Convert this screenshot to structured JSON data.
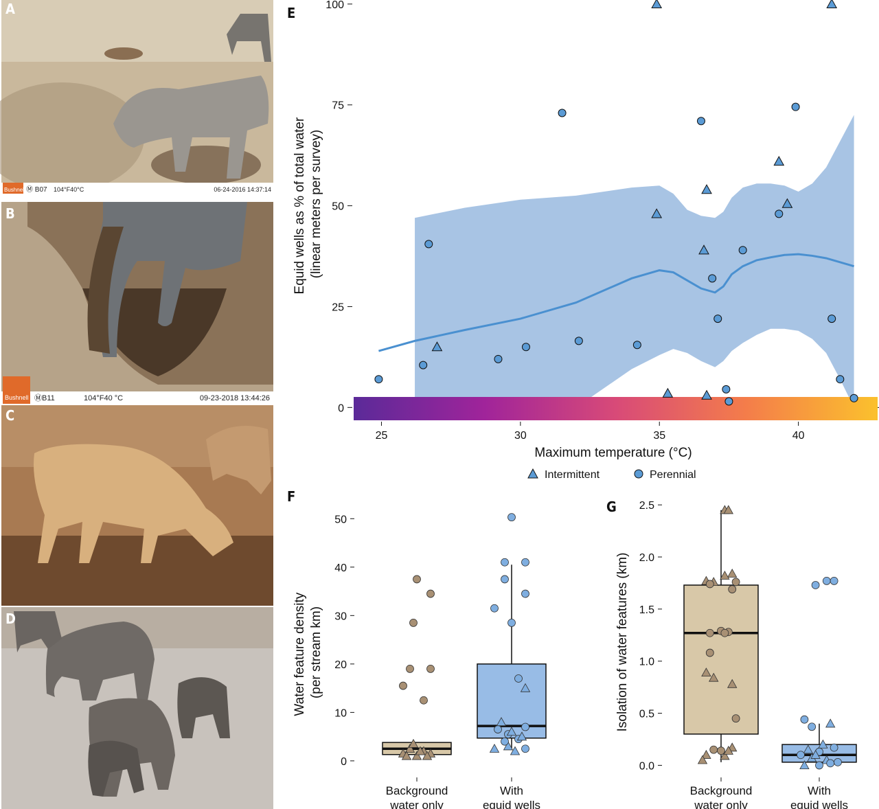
{
  "photos": [
    {
      "letter": "A",
      "camera": "B07",
      "temp": "104°F40°C",
      "datetime": "06-24-2016  14:37:14",
      "logo": "Bushnell"
    },
    {
      "letter": "B",
      "camera": "B11",
      "temp": "104°F40 °C",
      "datetime": "09-23-2018  13:44:26",
      "logo": "Bushnell"
    },
    {
      "letter": "C"
    },
    {
      "letter": "D"
    }
  ],
  "chart_data": [
    {
      "panel": "E",
      "type": "scatter",
      "ylabel": [
        "Equid wells as % of total water",
        "(linear meters per survey)"
      ],
      "xlabel": "Maximum temperature (°C)",
      "xlim": [
        24,
        42.9
      ],
      "ylim": [
        -2.5,
        101
      ],
      "x_ticks": [
        25,
        30,
        35,
        40
      ],
      "y_ticks": [
        0,
        25,
        50,
        75,
        100
      ],
      "legend": {
        "placement": "bottom",
        "entries": [
          {
            "name": "Intermittent",
            "shape": "triangle"
          },
          {
            "name": "Perennial",
            "shape": "circle"
          }
        ]
      },
      "colors": {
        "point": "#5b9bd5",
        "ribbon": "#a8c4e4",
        "smooth": "#4a90d0"
      },
      "colorbar": [
        "#5b2a99",
        "#a0249a",
        "#d84a78",
        "#f47d4a",
        "#fbc12d"
      ],
      "series": [
        {
          "name": "Intermittent",
          "shape": "triangle",
          "points": [
            [
              27.0,
              15
            ],
            [
              34.9,
              100
            ],
            [
              34.9,
              48
            ],
            [
              35.3,
              3.5
            ],
            [
              36.6,
              39
            ],
            [
              36.7,
              54
            ],
            [
              36.7,
              3
            ],
            [
              39.3,
              61
            ],
            [
              39.6,
              50.5
            ],
            [
              41.2,
              100
            ]
          ]
        },
        {
          "name": "Perennial",
          "shape": "circle",
          "points": [
            [
              24.9,
              7
            ],
            [
              26.5,
              10.5
            ],
            [
              26.7,
              40.5
            ],
            [
              29.2,
              12
            ],
            [
              30.2,
              15
            ],
            [
              31.5,
              73
            ],
            [
              32.1,
              16.5
            ],
            [
              34.2,
              15.5
            ],
            [
              36.5,
              71
            ],
            [
              36.9,
              32
            ],
            [
              37.1,
              22
            ],
            [
              37.4,
              4.5
            ],
            [
              37.5,
              1.5
            ],
            [
              38.0,
              39
            ],
            [
              39.3,
              48
            ],
            [
              39.9,
              74.5
            ],
            [
              41.2,
              22
            ],
            [
              41.5,
              7
            ],
            [
              42.0,
              2.3
            ]
          ]
        }
      ],
      "smooth": {
        "x": [
          24.9,
          26.2,
          28,
          30,
          32,
          34,
          35,
          35.5,
          36,
          36.5,
          37,
          37.3,
          37.6,
          38,
          38.5,
          39,
          39.5,
          40,
          40.5,
          41,
          41.5,
          42
        ],
        "fit": [
          14,
          16.5,
          19.2,
          22,
          26,
          32,
          34,
          33.5,
          31.5,
          29.5,
          28.5,
          30,
          33,
          35,
          36.5,
          37.2,
          37.8,
          38,
          37.6,
          37,
          36,
          35
        ],
        "upper": [
          null,
          47,
          49.5,
          51.5,
          52.5,
          54.5,
          55,
          53,
          49,
          47.5,
          47,
          48.5,
          52,
          54.5,
          55.5,
          55.5,
          55,
          53.5,
          55.5,
          59.5,
          66,
          72.5
        ],
        "lower": [
          null,
          0,
          0,
          0,
          0,
          9.5,
          13,
          14.5,
          13.5,
          11.5,
          10,
          11.5,
          14,
          16,
          18,
          19.5,
          19.5,
          19,
          17,
          13.5,
          7,
          0
        ]
      }
    },
    {
      "panel": "F",
      "type": "box",
      "ylabel": [
        "Water feature density",
        "(per stream km)"
      ],
      "categories": [
        [
          "Background",
          "water only"
        ],
        [
          "With",
          "equid wells"
        ]
      ],
      "ylim": [
        -2,
        55
      ],
      "y_ticks": [
        0,
        10,
        20,
        30,
        40,
        50
      ],
      "boxes": [
        {
          "color": "#d8c8a8",
          "point_color": "#a89074",
          "q1": 1.3,
          "median": 2.5,
          "q3": 3.8,
          "whisker_low": 1.3,
          "whisker_high": 3.8
        },
        {
          "color": "#98bce6",
          "point_color": "#7faee0",
          "q1": 4.7,
          "median": 7.2,
          "q3": 20,
          "whisker_low": 2.5,
          "whisker_high": 40.5
        }
      ],
      "points": [
        [
          [
            0,
            37.5,
            "c"
          ],
          [
            0.2,
            34.5,
            "c"
          ],
          [
            -0.05,
            28.5,
            "c"
          ],
          [
            0.2,
            19,
            "c"
          ],
          [
            -0.1,
            19,
            "c"
          ],
          [
            0.1,
            12.5,
            "c"
          ],
          [
            -0.2,
            15.5,
            "c"
          ],
          [
            -0.2,
            1.5,
            "t"
          ],
          [
            -0.1,
            2.5,
            "t"
          ],
          [
            0,
            1,
            "t"
          ],
          [
            0.1,
            2,
            "t"
          ],
          [
            0.2,
            1.5,
            "t"
          ],
          [
            -0.05,
            3.5,
            "t"
          ],
          [
            0.15,
            1,
            "t"
          ],
          [
            0.05,
            2,
            "t"
          ],
          [
            -0.15,
            1,
            "t"
          ]
        ],
        [
          [
            0,
            50.3,
            "c"
          ],
          [
            -0.1,
            41,
            "c"
          ],
          [
            0.2,
            41,
            "c"
          ],
          [
            -0.1,
            37.5,
            "c"
          ],
          [
            0.2,
            34.5,
            "c"
          ],
          [
            -0.25,
            31.5,
            "c"
          ],
          [
            0,
            28.5,
            "c"
          ],
          [
            0.1,
            17,
            "c"
          ],
          [
            0.2,
            15,
            "t"
          ],
          [
            -0.2,
            6.5,
            "c"
          ],
          [
            -0.05,
            5.5,
            "c"
          ],
          [
            0.1,
            4.5,
            "c"
          ],
          [
            0.2,
            7,
            "c"
          ],
          [
            -0.15,
            8,
            "t"
          ],
          [
            0,
            6,
            "t"
          ],
          [
            0.15,
            5,
            "t"
          ],
          [
            -0.25,
            2.5,
            "t"
          ],
          [
            -0.05,
            3,
            "t"
          ],
          [
            0.05,
            2,
            "t"
          ],
          [
            0.2,
            2.5,
            "c"
          ],
          [
            -0.1,
            4,
            "c"
          ]
        ]
      ]
    },
    {
      "panel": "G",
      "type": "box",
      "ylabel": [
        "Isolation of water features (km)"
      ],
      "categories": [
        [
          "Background",
          "water only"
        ],
        [
          "With",
          "equid wells"
        ]
      ],
      "ylim": [
        -0.05,
        2.6
      ],
      "y_ticks": [
        "0.0",
        "0.5",
        "1.0",
        "1.5",
        "2.0",
        "2.5"
      ],
      "boxes": [
        {
          "color": "#d8c8a8",
          "point_color": "#a89074",
          "q1": 0.3,
          "median": 1.27,
          "q3": 1.73,
          "whisker_low": 0.03,
          "whisker_high": 2.45
        },
        {
          "color": "#98bce6",
          "point_color": "#7faee0",
          "q1": 0.03,
          "median": 0.1,
          "q3": 0.2,
          "whisker_low": 0.0,
          "whisker_high": 0.4
        }
      ],
      "points": [
        [
          [
            0.05,
            2.45,
            "t"
          ],
          [
            0.1,
            2.45,
            "t"
          ],
          [
            0.15,
            1.84,
            "t"
          ],
          [
            0.05,
            1.82,
            "t"
          ],
          [
            -0.2,
            1.77,
            "t"
          ],
          [
            -0.1,
            1.76,
            "t"
          ],
          [
            0.2,
            1.76,
            "c"
          ],
          [
            -0.15,
            1.74,
            "c"
          ],
          [
            0.15,
            1.69,
            "c"
          ],
          [
            0,
            1.29,
            "c"
          ],
          [
            0.1,
            1.28,
            "c"
          ],
          [
            -0.15,
            1.27,
            "c"
          ],
          [
            0.05,
            1.27,
            "c"
          ],
          [
            -0.15,
            1.08,
            "c"
          ],
          [
            -0.2,
            0.89,
            "t"
          ],
          [
            -0.1,
            0.84,
            "t"
          ],
          [
            0.15,
            0.78,
            "t"
          ],
          [
            0.2,
            0.45,
            "c"
          ],
          [
            -0.2,
            0.1,
            "t"
          ],
          [
            -0.1,
            0.15,
            "c"
          ],
          [
            0,
            0.14,
            "c"
          ],
          [
            0.05,
            0.09,
            "t"
          ],
          [
            0.15,
            0.17,
            "t"
          ],
          [
            -0.25,
            0.05,
            "t"
          ],
          [
            0.1,
            0.14,
            "t"
          ]
        ],
        [
          [
            0.1,
            1.77,
            "c"
          ],
          [
            0.2,
            1.77,
            "c"
          ],
          [
            -0.05,
            1.73,
            "c"
          ],
          [
            -0.2,
            0.44,
            "c"
          ],
          [
            -0.1,
            0.37,
            "c"
          ],
          [
            0.15,
            0.4,
            "t"
          ],
          [
            -0.15,
            0.15,
            "t"
          ],
          [
            0.05,
            0.2,
            "t"
          ],
          [
            0.2,
            0.17,
            "c"
          ],
          [
            0,
            0.13,
            "c"
          ],
          [
            -0.25,
            0.1,
            "c"
          ],
          [
            -0.1,
            0.07,
            "t"
          ],
          [
            0.1,
            0.05,
            "t"
          ],
          [
            0.25,
            0.03,
            "c"
          ],
          [
            -0.2,
            0.0,
            "t"
          ],
          [
            0,
            0.0,
            "c"
          ],
          [
            0.15,
            0.02,
            "c"
          ],
          [
            -0.05,
            0.1,
            "t"
          ]
        ]
      ]
    }
  ]
}
